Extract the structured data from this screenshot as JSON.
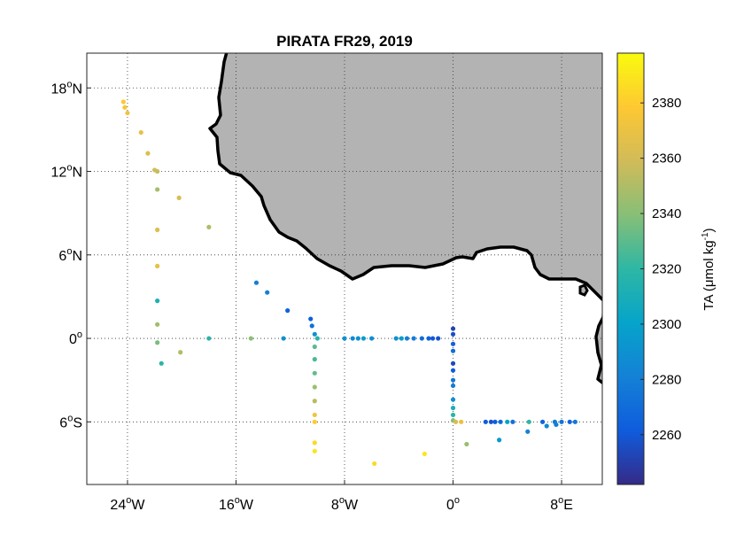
{
  "map": {
    "title": "PIRATA FR29, 2019",
    "lon_range": [
      -27,
      11
    ],
    "lat_range": [
      -10.5,
      20.5
    ],
    "x_ticks": [
      {
        "value": -24,
        "deg": "24",
        "hemi": "W"
      },
      {
        "value": -16,
        "deg": "16",
        "hemi": "W"
      },
      {
        "value": -8,
        "deg": "8",
        "hemi": "W"
      },
      {
        "value": 0,
        "deg": "0",
        "hemi": ""
      },
      {
        "value": 8,
        "deg": "8",
        "hemi": "E"
      }
    ],
    "y_ticks": [
      {
        "value": 18,
        "deg": "18",
        "hemi": "N"
      },
      {
        "value": 12,
        "deg": "12",
        "hemi": "N"
      },
      {
        "value": 6,
        "deg": "6",
        "hemi": "N"
      },
      {
        "value": 0,
        "deg": "0",
        "hemi": ""
      },
      {
        "value": -6,
        "deg": "6",
        "hemi": "S"
      }
    ],
    "grid": true,
    "land_color": "#b3b3b3",
    "coast_color": "#000000"
  },
  "colorbar": {
    "label": "TA (μmol kg",
    "label_exp": "-1",
    "label_close": ")",
    "range": [
      2242,
      2398
    ],
    "ticks": [
      2260,
      2280,
      2300,
      2320,
      2340,
      2360,
      2380
    ],
    "colormap": "parula"
  },
  "chart_data": {
    "type": "scatter",
    "x_name": "Longitude",
    "y_name": "Latitude",
    "z_name": "TA",
    "points": [
      [
        -24.3,
        17.0,
        2378
      ],
      [
        -24.2,
        16.6,
        2376
      ],
      [
        -24.0,
        16.2,
        2372
      ],
      [
        -23.0,
        14.8,
        2368
      ],
      [
        -22.5,
        13.3,
        2364
      ],
      [
        -22.0,
        12.1,
        2360
      ],
      [
        -21.8,
        12.0,
        2356
      ],
      [
        -21.8,
        10.7,
        2348
      ],
      [
        -20.2,
        10.1,
        2362
      ],
      [
        -21.8,
        7.8,
        2364
      ],
      [
        -18.0,
        8.0,
        2350
      ],
      [
        -21.8,
        5.2,
        2368
      ],
      [
        -21.8,
        2.7,
        2312
      ],
      [
        -21.8,
        1.0,
        2346
      ],
      [
        -21.8,
        -0.3,
        2336
      ],
      [
        -21.5,
        -1.8,
        2318
      ],
      [
        -20.1,
        -1.0,
        2350
      ],
      [
        -18.0,
        0.0,
        2318
      ],
      [
        -14.9,
        0.0,
        2340
      ],
      [
        -14.5,
        4.0,
        2280
      ],
      [
        -13.7,
        3.3,
        2280
      ],
      [
        -12.5,
        0.0,
        2290
      ],
      [
        -12.2,
        2.0,
        2265
      ],
      [
        -10.5,
        1.4,
        2262
      ],
      [
        -10.4,
        0.9,
        2272
      ],
      [
        -10.2,
        0.3,
        2290
      ],
      [
        -10.0,
        0.0,
        2316
      ],
      [
        -10.2,
        -0.6,
        2330
      ],
      [
        -10.2,
        -1.5,
        2326
      ],
      [
        -10.2,
        -2.5,
        2332
      ],
      [
        -10.2,
        -3.5,
        2345
      ],
      [
        -10.2,
        -4.5,
        2352
      ],
      [
        -10.2,
        -5.5,
        2372
      ],
      [
        -10.2,
        -6.0,
        2380
      ],
      [
        -10.2,
        -7.5,
        2385
      ],
      [
        -10.2,
        -8.1,
        2390
      ],
      [
        -8.0,
        0.0,
        2290
      ],
      [
        -7.4,
        0.0,
        2285
      ],
      [
        -7.0,
        0.0,
        2290
      ],
      [
        -6.6,
        0.0,
        2295
      ],
      [
        -6.0,
        0.0,
        2288
      ],
      [
        -4.2,
        0.0,
        2290
      ],
      [
        -3.8,
        0.0,
        2296
      ],
      [
        -3.4,
        0.0,
        2280
      ],
      [
        -2.9,
        0.0,
        2278
      ],
      [
        -2.3,
        0.0,
        2270
      ],
      [
        -1.8,
        0.0,
        2264
      ],
      [
        -1.5,
        0.0,
        2260
      ],
      [
        -1.1,
        0.0,
        2258
      ],
      [
        0.0,
        0.7,
        2252
      ],
      [
        0.0,
        0.3,
        2256
      ],
      [
        0.0,
        -0.4,
        2265
      ],
      [
        0.0,
        -0.9,
        2270
      ],
      [
        0.0,
        -1.8,
        2255
      ],
      [
        0.0,
        -2.3,
        2262
      ],
      [
        0.0,
        -3.0,
        2275
      ],
      [
        0.0,
        -3.4,
        2278
      ],
      [
        0.0,
        -4.4,
        2288
      ],
      [
        0.0,
        -5.0,
        2310
      ],
      [
        0.0,
        -5.5,
        2318
      ],
      [
        0.0,
        -5.9,
        2340
      ],
      [
        0.2,
        -6.0,
        2362
      ],
      [
        0.6,
        -6.0,
        2370
      ],
      [
        2.4,
        -6.0,
        2262
      ],
      [
        2.8,
        -6.0,
        2258
      ],
      [
        3.1,
        -6.0,
        2262
      ],
      [
        3.5,
        -6.0,
        2270
      ],
      [
        4.0,
        -6.0,
        2300
      ],
      [
        4.4,
        -6.0,
        2272
      ],
      [
        5.6,
        -6.0,
        2320
      ],
      [
        6.6,
        -6.0,
        2265
      ],
      [
        7.5,
        -6.0,
        2278
      ],
      [
        8.0,
        -6.0,
        2275
      ],
      [
        8.6,
        -6.0,
        2265
      ],
      [
        9.0,
        -6.0,
        2276
      ],
      [
        3.4,
        -7.3,
        2295
      ],
      [
        5.5,
        -6.7,
        2282
      ],
      [
        6.9,
        -6.3,
        2285
      ],
      [
        7.6,
        -6.2,
        2280
      ],
      [
        1.0,
        -7.6,
        2344
      ],
      [
        -5.8,
        -9.0,
        2385
      ],
      [
        -2.1,
        -8.3,
        2390
      ]
    ]
  }
}
